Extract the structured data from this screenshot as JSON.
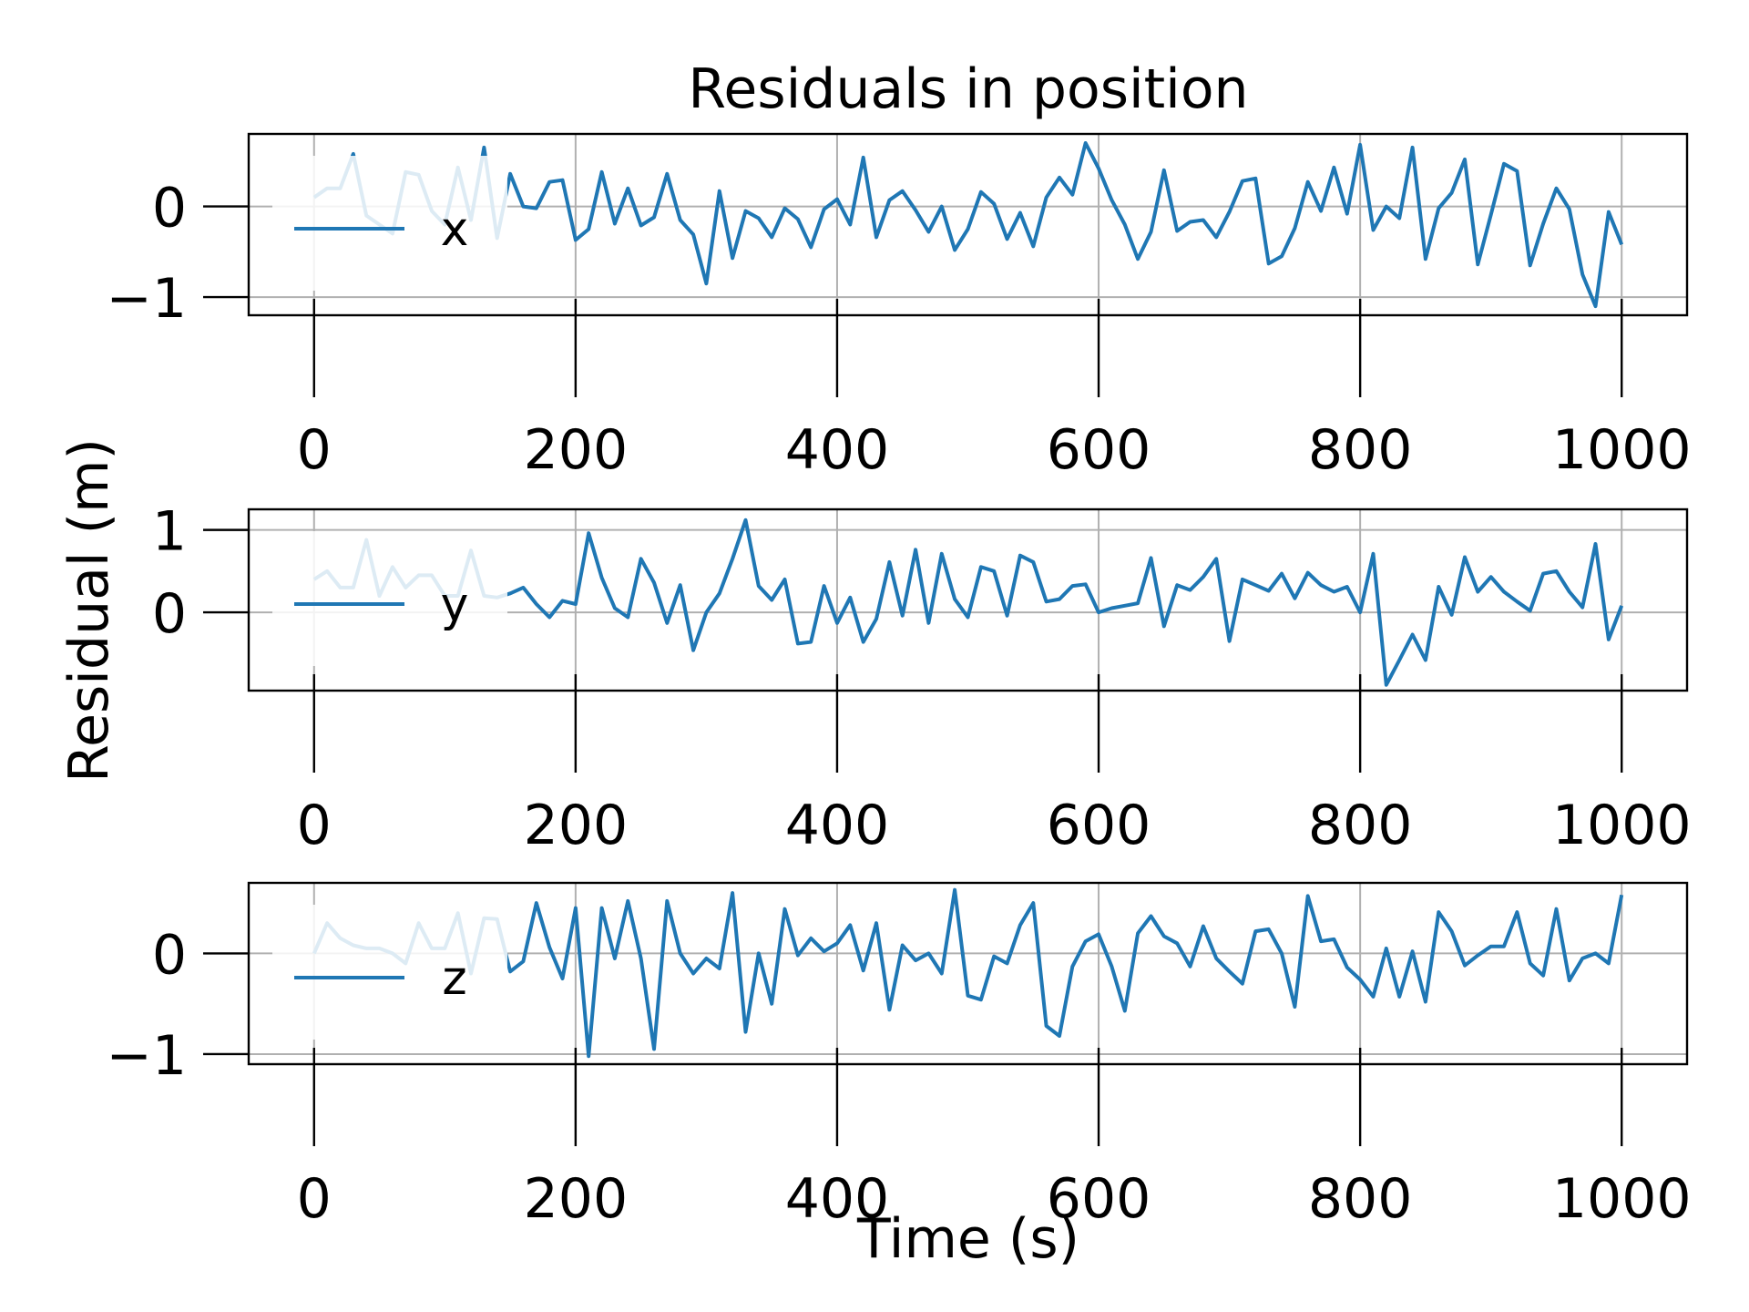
{
  "chart_data": {
    "type": "line",
    "title": "Residuals in position",
    "xlabel": "Time (s)",
    "ylabel": "Residual (m)",
    "series_color": "#1f77b4",
    "grid": true,
    "legend_position": "left",
    "xlim": [
      -50,
      1050
    ],
    "x_ticks": [
      0,
      200,
      400,
      600,
      800,
      1000
    ],
    "x_tick_labels": [
      "0",
      "200",
      "400",
      "600",
      "800",
      "1000"
    ],
    "x": [
      0,
      10,
      20,
      30,
      40,
      50,
      60,
      70,
      80,
      90,
      100,
      110,
      120,
      130,
      140,
      150,
      160,
      170,
      180,
      190,
      200,
      210,
      220,
      230,
      240,
      250,
      260,
      270,
      280,
      290,
      300,
      310,
      320,
      330,
      340,
      350,
      360,
      370,
      380,
      390,
      400,
      410,
      420,
      430,
      440,
      450,
      460,
      470,
      480,
      490,
      500,
      510,
      520,
      530,
      540,
      550,
      560,
      570,
      580,
      590,
      600,
      610,
      620,
      630,
      640,
      650,
      660,
      670,
      680,
      690,
      700,
      710,
      720,
      730,
      740,
      750,
      760,
      770,
      780,
      790,
      800,
      810,
      820,
      830,
      840,
      850,
      860,
      870,
      880,
      890,
      900,
      910,
      920,
      930,
      940,
      950,
      960,
      970,
      980,
      990,
      1000
    ],
    "panels": [
      {
        "name": "x",
        "ylim": [
          -1.2,
          0.8
        ],
        "y_ticks": [
          -1,
          0
        ],
        "y_tick_labels": [
          "−1",
          "0"
        ],
        "values": [
          0.1,
          0.2,
          0.2,
          0.58,
          -0.1,
          -0.2,
          -0.3,
          0.38,
          0.35,
          -0.05,
          -0.2,
          0.43,
          -0.15,
          0.65,
          -0.35,
          0.36,
          0.0,
          -0.02,
          0.27,
          0.29,
          -0.37,
          -0.25,
          0.38,
          -0.19,
          0.2,
          -0.21,
          -0.12,
          0.36,
          -0.15,
          -0.31,
          -0.85,
          0.17,
          -0.57,
          -0.05,
          -0.13,
          -0.34,
          -0.02,
          -0.14,
          -0.45,
          -0.03,
          0.08,
          -0.2,
          0.54,
          -0.34,
          0.07,
          0.17,
          -0.04,
          -0.28,
          0.0,
          -0.48,
          -0.25,
          0.16,
          0.03,
          -0.36,
          -0.07,
          -0.44,
          0.1,
          0.32,
          0.13,
          0.7,
          0.42,
          0.07,
          -0.2,
          -0.58,
          -0.28,
          0.4,
          -0.27,
          -0.17,
          -0.15,
          -0.34,
          -0.06,
          0.28,
          0.31,
          -0.63,
          -0.55,
          -0.24,
          0.27,
          -0.05,
          0.43,
          -0.08,
          0.68,
          -0.26,
          0.0,
          -0.13,
          0.65,
          -0.58,
          -0.02,
          0.15,
          0.52,
          -0.64,
          -0.09,
          0.47,
          0.39,
          -0.65,
          -0.19,
          0.2,
          -0.03,
          -0.75,
          -1.1,
          -0.06,
          -0.42
        ]
      },
      {
        "name": "y",
        "ylim": [
          -0.95,
          1.25
        ],
        "y_ticks": [
          0,
          1
        ],
        "y_tick_labels": [
          "0",
          "1"
        ],
        "values": [
          0.4,
          0.5,
          0.3,
          0.3,
          0.88,
          0.2,
          0.55,
          0.3,
          0.45,
          0.45,
          0.2,
          0.2,
          0.75,
          0.2,
          0.18,
          0.23,
          0.3,
          0.1,
          -0.06,
          0.14,
          0.1,
          0.96,
          0.42,
          0.05,
          -0.06,
          0.65,
          0.36,
          -0.13,
          0.33,
          -0.46,
          0.0,
          0.23,
          0.65,
          1.12,
          0.32,
          0.15,
          0.4,
          -0.38,
          -0.36,
          0.32,
          -0.13,
          0.18,
          -0.36,
          -0.08,
          0.61,
          -0.04,
          0.76,
          -0.13,
          0.71,
          0.16,
          -0.06,
          0.55,
          0.5,
          -0.04,
          0.69,
          0.61,
          0.13,
          0.16,
          0.32,
          0.34,
          0.0,
          0.05,
          0.08,
          0.11,
          0.66,
          -0.17,
          0.33,
          0.27,
          0.43,
          0.65,
          -0.35,
          0.4,
          0.33,
          0.26,
          0.47,
          0.17,
          0.48,
          0.33,
          0.25,
          0.31,
          0.0,
          0.71,
          -0.88,
          -0.58,
          -0.27,
          -0.58,
          0.31,
          -0.03,
          0.67,
          0.25,
          0.43,
          0.25,
          0.13,
          0.02,
          0.47,
          0.5,
          0.25,
          0.06,
          0.83,
          -0.33,
          0.08
        ]
      },
      {
        "name": "z",
        "ylim": [
          -1.1,
          0.7
        ],
        "y_ticks": [
          -1,
          0
        ],
        "y_tick_labels": [
          "−1",
          "0"
        ],
        "values": [
          0.0,
          0.3,
          0.15,
          0.08,
          0.05,
          0.05,
          0.0,
          -0.1,
          0.3,
          0.05,
          0.05,
          0.4,
          -0.2,
          0.35,
          0.34,
          -0.18,
          -0.08,
          0.5,
          0.06,
          -0.25,
          0.45,
          -1.02,
          0.45,
          -0.05,
          0.52,
          -0.05,
          -0.95,
          0.52,
          0.0,
          -0.2,
          -0.05,
          -0.15,
          0.6,
          -0.78,
          0.0,
          -0.5,
          0.44,
          -0.02,
          0.15,
          0.02,
          0.1,
          0.28,
          -0.17,
          0.3,
          -0.56,
          0.08,
          -0.07,
          0.0,
          -0.2,
          0.63,
          -0.42,
          -0.46,
          -0.03,
          -0.1,
          0.28,
          0.5,
          -0.72,
          -0.82,
          -0.13,
          0.12,
          0.19,
          -0.13,
          -0.57,
          0.2,
          0.37,
          0.17,
          0.1,
          -0.13,
          0.27,
          -0.05,
          -0.18,
          -0.3,
          0.22,
          0.24,
          0.0,
          -0.53,
          0.57,
          0.12,
          0.14,
          -0.14,
          -0.26,
          -0.43,
          0.05,
          -0.43,
          0.02,
          -0.48,
          0.41,
          0.22,
          -0.12,
          -0.02,
          0.07,
          0.07,
          0.41,
          -0.1,
          -0.22,
          0.44,
          -0.27,
          -0.05,
          0.0,
          -0.1,
          0.58
        ]
      }
    ]
  }
}
